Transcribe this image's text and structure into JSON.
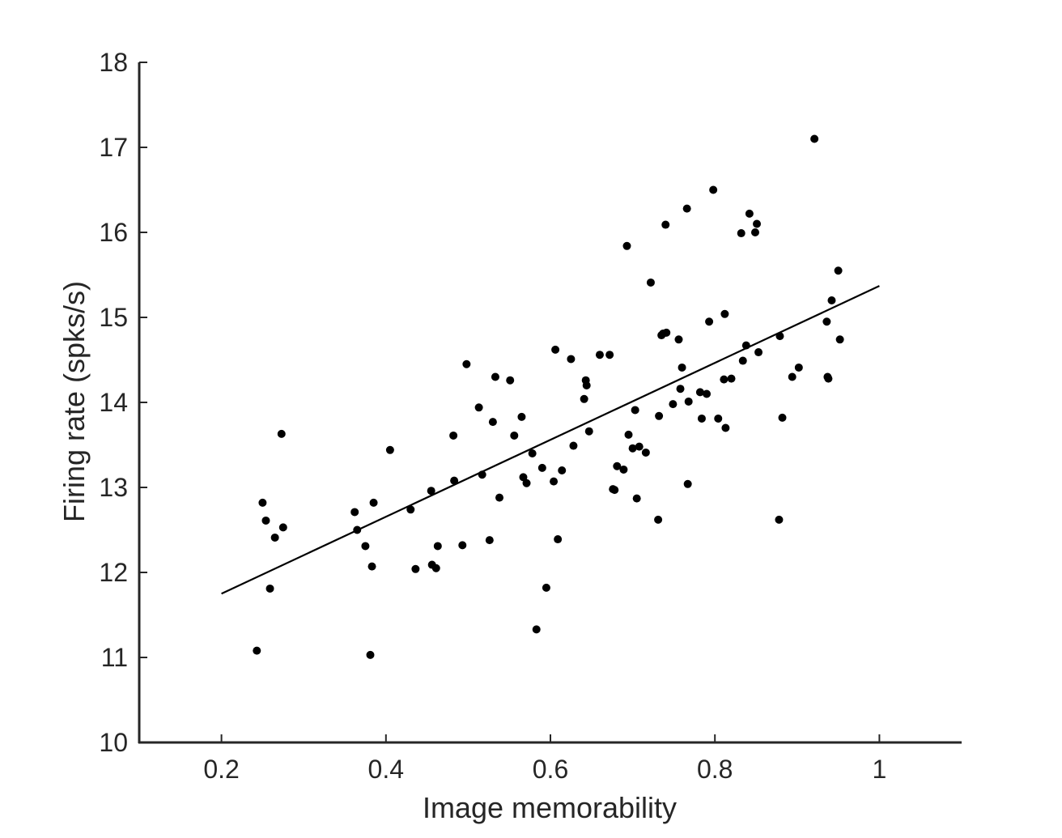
{
  "chart_data": {
    "type": "scatter",
    "xlabel": "Image memorability",
    "ylabel": "Firing rate (spks/s)",
    "xlim": [
      0.1,
      1.1
    ],
    "ylim": [
      10,
      18
    ],
    "xticks": [
      0.2,
      0.4,
      0.6,
      0.8,
      1.0
    ],
    "xtick_labels": [
      "0.2",
      "0.4",
      "0.6",
      "0.8",
      "1"
    ],
    "yticks": [
      10,
      11,
      12,
      13,
      14,
      15,
      16,
      17,
      18
    ],
    "ytick_labels": [
      "10",
      "11",
      "12",
      "13",
      "14",
      "15",
      "16",
      "17",
      "18"
    ],
    "grid": false,
    "colors": {
      "points": "#000000",
      "fit_line": "#000000",
      "axes": "#262626"
    },
    "fit_line": {
      "x": [
        0.2,
        1.0
      ],
      "y": [
        11.75,
        15.37
      ]
    },
    "series": [
      {
        "x": [
          0.243,
          0.25,
          0.254,
          0.259,
          0.265,
          0.273,
          0.275,
          0.362,
          0.365,
          0.375,
          0.381,
          0.383,
          0.385,
          0.405,
          0.43,
          0.436,
          0.455,
          0.456,
          0.461,
          0.463,
          0.482,
          0.483,
          0.493,
          0.498,
          0.513,
          0.517,
          0.526,
          0.53,
          0.533,
          0.538,
          0.551,
          0.556,
          0.565,
          0.567,
          0.571,
          0.578,
          0.583,
          0.59,
          0.595,
          0.604,
          0.606,
          0.609,
          0.614,
          0.625,
          0.628,
          0.641,
          0.643,
          0.644,
          0.647,
          0.66,
          0.672,
          0.676,
          0.678,
          0.681,
          0.689,
          0.693,
          0.695,
          0.7,
          0.703,
          0.705,
          0.708,
          0.716,
          0.722,
          0.731,
          0.732,
          0.735,
          0.737,
          0.74,
          0.741,
          0.749,
          0.756,
          0.758,
          0.76,
          0.766,
          0.767,
          0.768,
          0.782,
          0.784,
          0.79,
          0.793,
          0.798,
          0.804,
          0.811,
          0.812,
          0.813,
          0.82,
          0.832,
          0.834,
          0.838,
          0.842,
          0.849,
          0.851,
          0.853,
          0.878,
          0.879,
          0.882,
          0.894,
          0.902,
          0.921,
          0.936,
          0.937,
          0.938,
          0.942,
          0.95,
          0.952
        ],
        "y": [
          11.08,
          12.82,
          12.61,
          11.81,
          12.41,
          13.63,
          12.53,
          12.71,
          12.5,
          12.31,
          11.03,
          12.07,
          12.82,
          13.44,
          12.74,
          12.04,
          12.96,
          12.09,
          12.05,
          12.31,
          13.61,
          13.08,
          12.32,
          14.45,
          13.94,
          13.15,
          12.38,
          13.77,
          14.3,
          12.88,
          14.26,
          13.61,
          13.83,
          13.12,
          13.05,
          13.4,
          11.33,
          13.23,
          11.82,
          13.07,
          14.62,
          12.39,
          13.2,
          14.51,
          13.49,
          14.04,
          14.26,
          14.2,
          13.66,
          14.56,
          14.56,
          12.98,
          12.97,
          13.25,
          13.21,
          15.84,
          13.62,
          13.46,
          13.91,
          12.87,
          13.48,
          13.41,
          15.41,
          12.62,
          13.84,
          14.79,
          14.81,
          16.09,
          14.82,
          13.98,
          14.74,
          14.16,
          14.41,
          16.28,
          13.04,
          14.01,
          14.12,
          13.81,
          14.1,
          14.95,
          16.5,
          13.81,
          14.27,
          15.04,
          13.7,
          14.28,
          15.99,
          14.49,
          14.67,
          16.22,
          16.0,
          16.1,
          14.59,
          12.62,
          14.78,
          13.82,
          14.3,
          14.41,
          17.1,
          14.95,
          14.3,
          14.28,
          15.2,
          15.55,
          14.74
        ]
      }
    ]
  }
}
